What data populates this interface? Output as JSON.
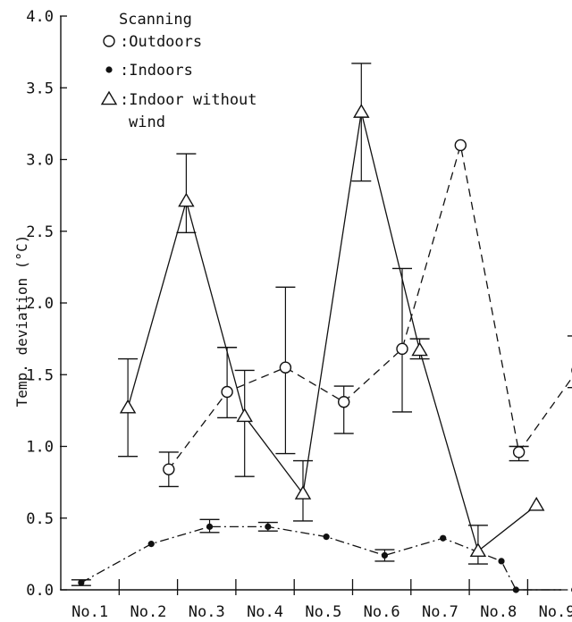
{
  "chart_data": {
    "type": "line",
    "title": "",
    "xlabel": "",
    "ylabel": "Temp. deviation (°C)",
    "ylim": [
      0,
      4.0
    ],
    "yticks": [
      "0.0",
      "0.5",
      "1.0",
      "1.5",
      "2.0",
      "2.5",
      "3.0",
      "3.5",
      "4.0"
    ],
    "categories": [
      "No.1",
      "No.2",
      "No.3",
      "No.4",
      "No.5",
      "No.6",
      "No.7",
      "No.8",
      "No.9"
    ],
    "legend": {
      "title": "Scanning",
      "placement": "top-left"
    },
    "series": [
      {
        "name": ":Outdoors",
        "marker": "open-circle",
        "line": "dashed",
        "points": [
          {
            "x": 2.35,
            "y": 0.84,
            "err_low": 0.72,
            "err_high": 0.96
          },
          {
            "x": 3.35,
            "y": 1.38,
            "err_low": 1.2,
            "err_high": 1.69
          },
          {
            "x": 4.35,
            "y": 1.55,
            "err_low": 0.95,
            "err_high": 2.11
          },
          {
            "x": 5.35,
            "y": 1.31,
            "err_low": 1.09,
            "err_high": 1.42
          },
          {
            "x": 6.35,
            "y": 1.68,
            "err_low": 1.24,
            "err_high": 2.24
          },
          {
            "x": 7.35,
            "y": 3.1
          },
          {
            "x": 8.35,
            "y": 0.96,
            "err_low": 0.9,
            "err_high": 1.0
          },
          {
            "x": 9.35,
            "y": 1.53,
            "err_low": 1.41,
            "err_high": 1.77
          }
        ]
      },
      {
        "name": ":Indoors",
        "marker": "filled-dot",
        "line": "dash-dot",
        "points": [
          {
            "x": 0.85,
            "y": 0.05,
            "err_low": 0.03,
            "err_high": 0.07
          },
          {
            "x": 2.05,
            "y": 0.32
          },
          {
            "x": 3.05,
            "y": 0.44,
            "err_low": 0.4,
            "err_high": 0.49
          },
          {
            "x": 4.05,
            "y": 0.44,
            "err_low": 0.41,
            "err_high": 0.47
          },
          {
            "x": 5.05,
            "y": 0.37
          },
          {
            "x": 6.05,
            "y": 0.24,
            "err_low": 0.2,
            "err_high": 0.28
          },
          {
            "x": 7.05,
            "y": 0.36
          },
          {
            "x": 8.05,
            "y": 0.2
          },
          {
            "x": 8.3,
            "y": 0.0
          },
          {
            "x": 9.3,
            "y": 0.0
          }
        ]
      },
      {
        "name": ":Indoor without wind",
        "marker": "open-triangle",
        "line": "solid",
        "points": [
          {
            "x": 1.65,
            "y": 1.27,
            "err_low": 0.93,
            "err_high": 1.61
          },
          {
            "x": 2.65,
            "y": 2.71,
            "err_low": 2.49,
            "err_high": 3.04
          },
          {
            "x": 3.65,
            "y": 1.21,
            "err_low": 0.79,
            "err_high": 1.53
          },
          {
            "x": 4.65,
            "y": 0.67,
            "err_low": 0.48,
            "err_high": 0.9
          },
          {
            "x": 5.65,
            "y": 3.33,
            "err_low": 2.85,
            "err_high": 3.67
          },
          {
            "x": 6.65,
            "y": 1.67,
            "err_low": 1.61,
            "err_high": 1.75
          },
          {
            "x": 7.65,
            "y": 0.27,
            "err_low": 0.18,
            "err_high": 0.45
          },
          {
            "x": 8.65,
            "y": 0.59
          }
        ]
      }
    ],
    "grid": false
  }
}
